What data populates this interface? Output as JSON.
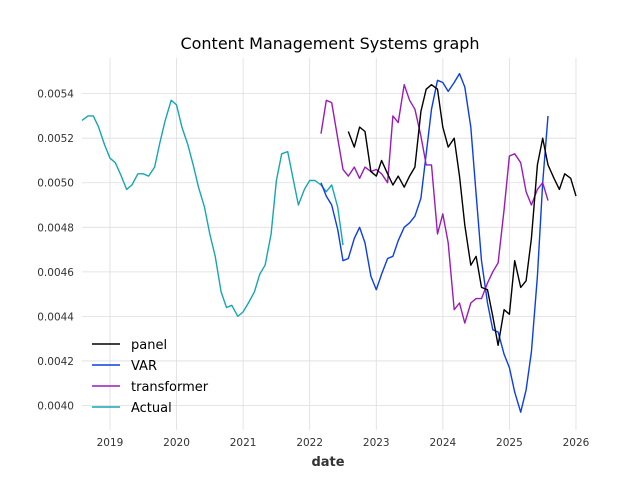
{
  "chart_data": {
    "type": "line",
    "title": "Content Management Systems graph",
    "xlabel": "date",
    "ylabel": "",
    "xlim": [
      2018.58,
      2026.0
    ],
    "ylim": [
      0.00389,
      0.00556
    ],
    "x_ticks": [
      2019,
      2020,
      2021,
      2022,
      2023,
      2024,
      2025,
      2026
    ],
    "x_tick_labels": [
      "2019",
      "2020",
      "2021",
      "2022",
      "2023",
      "2024",
      "2025",
      "2026"
    ],
    "y_ticks": [
      0.004,
      0.0042,
      0.0044,
      0.0046,
      0.0048,
      0.005,
      0.0052,
      0.0054
    ],
    "y_tick_labels": [
      "0.0040",
      "0.0042",
      "0.0044",
      "0.0046",
      "0.0048",
      "0.0050",
      "0.0052",
      "0.0054"
    ],
    "grid": true,
    "legend_position": "lower-left",
    "series": [
      {
        "name": "panel",
        "color": "#000000",
        "x": [
          2022.58,
          2022.67,
          2022.75,
          2022.83,
          2022.92,
          2023.0,
          2023.08,
          2023.17,
          2023.25,
          2023.33,
          2023.42,
          2023.5,
          2023.58,
          2023.67,
          2023.75,
          2023.83,
          2023.92,
          2024.0,
          2024.08,
          2024.17,
          2024.25,
          2024.33,
          2024.42,
          2024.5,
          2024.58,
          2024.67,
          2024.75,
          2024.83,
          2024.92,
          2025.0,
          2025.08,
          2025.17,
          2025.25,
          2025.33,
          2025.42,
          2025.5,
          2025.58,
          2025.67,
          2025.75,
          2025.83,
          2025.92,
          2026.0
        ],
        "y": [
          0.00523,
          0.00516,
          0.00525,
          0.00523,
          0.00505,
          0.00503,
          0.0051,
          0.00504,
          0.00499,
          0.00503,
          0.00498,
          0.00503,
          0.00507,
          0.00532,
          0.00542,
          0.00544,
          0.00542,
          0.00525,
          0.00516,
          0.0052,
          0.00503,
          0.00481,
          0.00463,
          0.00467,
          0.00453,
          0.00452,
          0.0044,
          0.00427,
          0.00443,
          0.00441,
          0.00465,
          0.00453,
          0.00456,
          0.00475,
          0.00508,
          0.0052,
          0.00508,
          0.00502,
          0.00497,
          0.00504,
          0.00502,
          0.00494
        ]
      },
      {
        "name": "VAR",
        "color": "#0b3ee6",
        "x": [
          2022.17,
          2022.25,
          2022.33,
          2022.42,
          2022.5,
          2022.58,
          2022.67,
          2022.75,
          2022.83,
          2022.92,
          2023.0,
          2023.08,
          2023.17,
          2023.25,
          2023.33,
          2023.42,
          2023.5,
          2023.58,
          2023.67,
          2023.75,
          2023.83,
          2023.92,
          2024.0,
          2024.08,
          2024.17,
          2024.25,
          2024.33,
          2024.42,
          2024.5,
          2024.58,
          2024.67,
          2024.75,
          2024.83,
          2024.92,
          2025.0,
          2025.08,
          2025.17,
          2025.25,
          2025.33,
          2025.42,
          2025.5,
          2025.58
        ],
        "y": [
          0.005,
          0.00494,
          0.0049,
          0.00479,
          0.00465,
          0.00466,
          0.00475,
          0.0048,
          0.00473,
          0.00458,
          0.00452,
          0.00459,
          0.00466,
          0.00467,
          0.00474,
          0.0048,
          0.00482,
          0.00485,
          0.00493,
          0.00513,
          0.00533,
          0.00546,
          0.00545,
          0.00541,
          0.00545,
          0.00549,
          0.00543,
          0.00525,
          0.00495,
          0.00465,
          0.00446,
          0.00434,
          0.00433,
          0.00423,
          0.00417,
          0.00406,
          0.00397,
          0.00407,
          0.00424,
          0.00458,
          0.005,
          0.0053
        ]
      },
      {
        "name": "transformer",
        "color": "#9a1bb8",
        "x": [
          2022.17,
          2022.25,
          2022.33,
          2022.42,
          2022.5,
          2022.58,
          2022.67,
          2022.75,
          2022.83,
          2022.92,
          2023.0,
          2023.08,
          2023.17,
          2023.25,
          2023.33,
          2023.42,
          2023.5,
          2023.58,
          2023.67,
          2023.75,
          2023.83,
          2023.92,
          2024.0,
          2024.08,
          2024.17,
          2024.25,
          2024.33,
          2024.42,
          2024.5,
          2024.58,
          2024.67,
          2024.75,
          2024.83,
          2024.92,
          2025.0,
          2025.08,
          2025.17,
          2025.25,
          2025.33,
          2025.42,
          2025.5,
          2025.58
        ],
        "y": [
          0.00522,
          0.00537,
          0.00536,
          0.0052,
          0.00506,
          0.00503,
          0.00507,
          0.00502,
          0.00507,
          0.00505,
          0.00506,
          0.00504,
          0.005,
          0.0053,
          0.00527,
          0.00544,
          0.00537,
          0.00533,
          0.00521,
          0.00508,
          0.00508,
          0.00477,
          0.00486,
          0.00473,
          0.00443,
          0.00446,
          0.00437,
          0.00446,
          0.00448,
          0.00448,
          0.00455,
          0.0046,
          0.00464,
          0.00488,
          0.00512,
          0.00513,
          0.00509,
          0.00496,
          0.0049,
          0.00497,
          0.005,
          0.00492
        ]
      },
      {
        "name": "Actual",
        "color": "#17a5b5",
        "x": [
          2018.58,
          2018.67,
          2018.75,
          2018.83,
          2018.92,
          2019.0,
          2019.08,
          2019.17,
          2019.25,
          2019.33,
          2019.42,
          2019.5,
          2019.58,
          2019.67,
          2019.75,
          2019.83,
          2019.92,
          2020.0,
          2020.08,
          2020.17,
          2020.25,
          2020.33,
          2020.42,
          2020.5,
          2020.58,
          2020.67,
          2020.75,
          2020.83,
          2020.92,
          2021.0,
          2021.08,
          2021.17,
          2021.25,
          2021.33,
          2021.42,
          2021.5,
          2021.58,
          2021.67,
          2021.75,
          2021.83,
          2021.92,
          2022.0,
          2022.08,
          2022.17,
          2022.25,
          2022.33,
          2022.42,
          2022.5
        ],
        "y": [
          0.00528,
          0.0053,
          0.0053,
          0.00525,
          0.00517,
          0.00511,
          0.00509,
          0.00503,
          0.00497,
          0.00499,
          0.00504,
          0.00504,
          0.00503,
          0.00507,
          0.00518,
          0.00528,
          0.00537,
          0.00535,
          0.00525,
          0.00517,
          0.00508,
          0.00498,
          0.00489,
          0.00477,
          0.00467,
          0.00451,
          0.00444,
          0.00445,
          0.0044,
          0.00442,
          0.00446,
          0.00451,
          0.00459,
          0.00463,
          0.00477,
          0.00501,
          0.00513,
          0.00514,
          0.00502,
          0.0049,
          0.00497,
          0.00501,
          0.00501,
          0.00499,
          0.00496,
          0.00499,
          0.00489,
          0.00472
        ]
      }
    ]
  }
}
